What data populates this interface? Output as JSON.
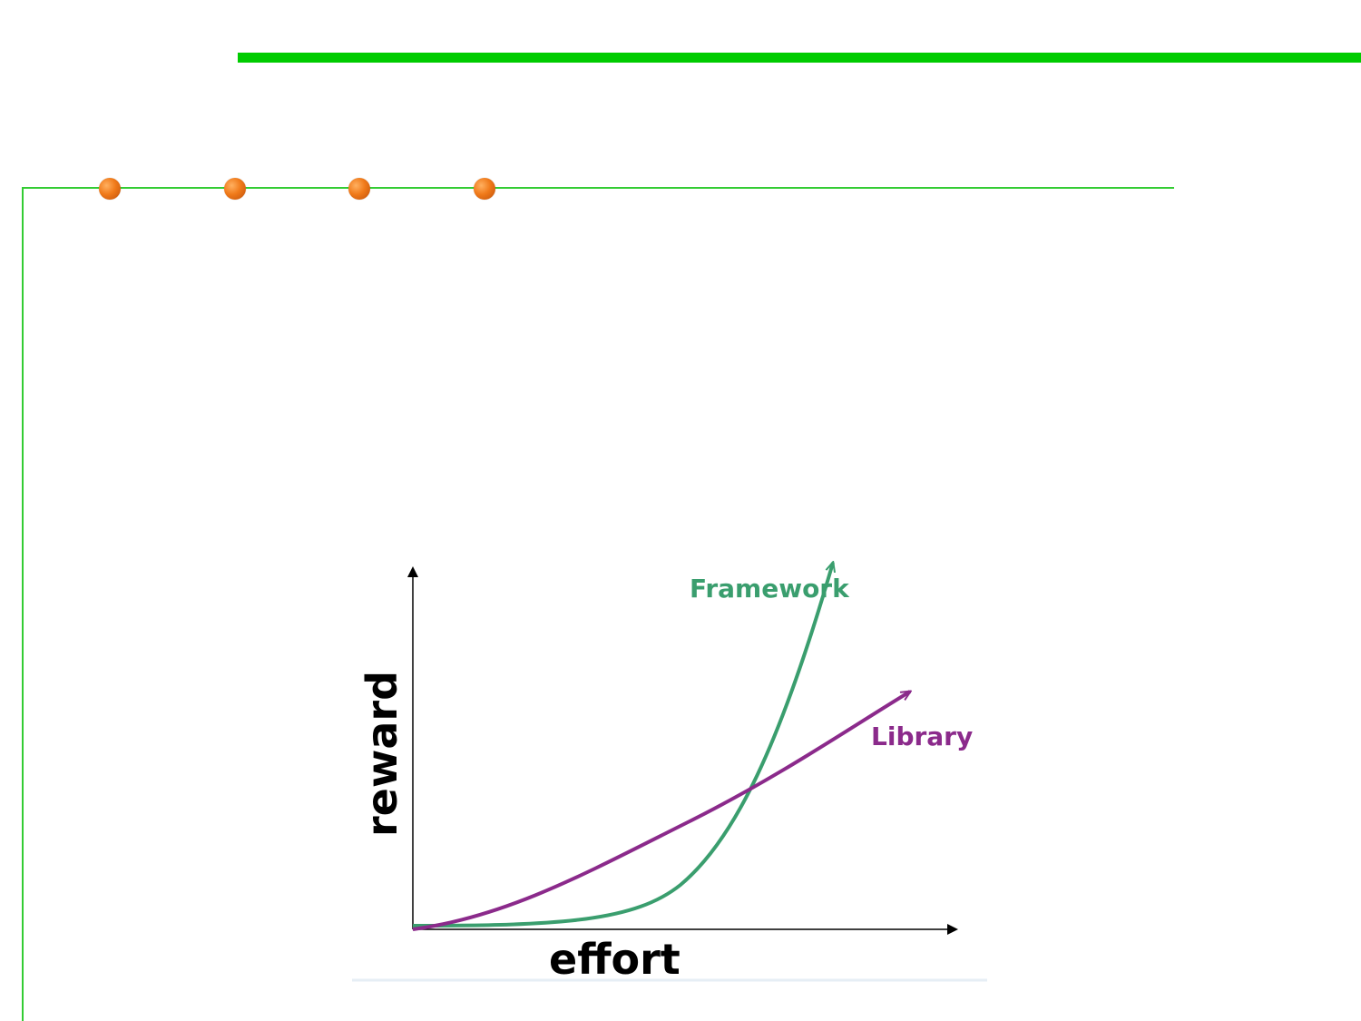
{
  "diagram": {
    "x_axis_label": "effort",
    "y_axis_label": "reward",
    "curves": [
      {
        "name": "Framework",
        "color": "#3a9e6e"
      },
      {
        "name": "Library",
        "color": "#8b2a8b"
      }
    ]
  },
  "decor": {
    "accent_bar_color": "#00cc00",
    "rule_color": "#33cc33",
    "bullet_color": "#f07a1a",
    "bullet_count": 4
  }
}
